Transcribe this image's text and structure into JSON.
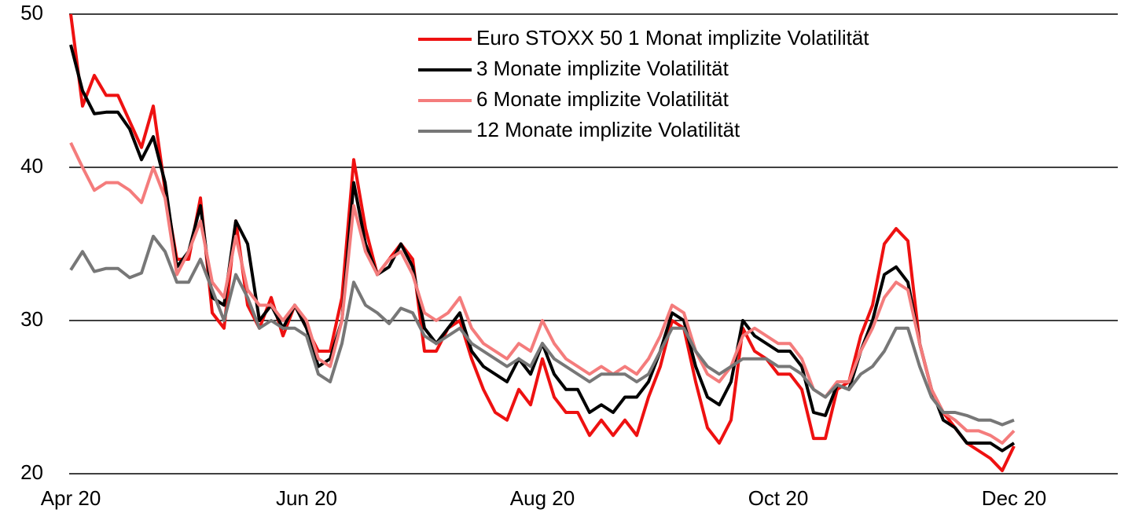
{
  "chart_data": {
    "type": "line",
    "categories": [
      "Apr 20",
      null,
      null,
      null,
      null,
      null,
      null,
      null,
      null,
      null,
      null,
      null,
      null,
      null,
      null,
      null,
      null,
      null,
      null,
      null,
      "Jun 20",
      null,
      null,
      null,
      null,
      null,
      null,
      null,
      null,
      null,
      null,
      null,
      null,
      null,
      null,
      null,
      null,
      null,
      null,
      null,
      "Aug 20",
      null,
      null,
      null,
      null,
      null,
      null,
      null,
      null,
      null,
      null,
      null,
      null,
      null,
      null,
      null,
      null,
      null,
      null,
      null,
      "Oct 20",
      null,
      null,
      null,
      null,
      null,
      null,
      null,
      null,
      null,
      null,
      null,
      null,
      null,
      null,
      null,
      null,
      null,
      null,
      null,
      "Dec 20"
    ],
    "series": [
      {
        "name": "Euro STOXX 50 1 Monat implizite Volatilität",
        "color": "#ee1111",
        "values": [
          50,
          44,
          46,
          44.7,
          44.7,
          43,
          41.3,
          44,
          38.5,
          34,
          34,
          38,
          30.5,
          29.5,
          36.5,
          31,
          29.5,
          31.5,
          29,
          31,
          29.5,
          28,
          28,
          31.5,
          40.5,
          36,
          33,
          34,
          35,
          34,
          28,
          28,
          29.5,
          30,
          27.5,
          25.5,
          24,
          23.5,
          25.5,
          24.5,
          27.5,
          25,
          24,
          24,
          22.5,
          23.5,
          22.5,
          23.5,
          22.5,
          25,
          27,
          30,
          29.5,
          26,
          23,
          22,
          23.5,
          29.5,
          28,
          27.5,
          26.5,
          26.5,
          25.5,
          22.3,
          22.3,
          25.5,
          26,
          29,
          31,
          35,
          36,
          35.2,
          28.5,
          25.5,
          24,
          23,
          22,
          21.5,
          21,
          20.2,
          21.8
        ]
      },
      {
        "name": "3 Monate implizite Volatilität",
        "color": "#000000",
        "values": [
          48,
          45,
          43.5,
          43.6,
          43.6,
          42.5,
          40.5,
          42,
          39,
          33.5,
          34.5,
          37.5,
          31.5,
          31,
          36.5,
          35,
          30,
          31,
          29.5,
          31,
          29.5,
          27,
          27.5,
          30,
          39,
          35,
          33,
          33.5,
          35,
          33.5,
          29.5,
          28.5,
          29.5,
          30.5,
          28,
          27,
          26.5,
          26,
          27.5,
          26.5,
          28.5,
          26.5,
          25.5,
          25.5,
          24,
          24.5,
          24,
          25,
          25,
          26,
          28,
          30.5,
          30,
          27,
          25,
          24.5,
          26,
          30,
          29,
          28.5,
          28,
          28,
          27,
          24,
          23.8,
          25.8,
          25.5,
          28,
          30,
          33,
          33.5,
          32.5,
          28.5,
          25.5,
          23.5,
          23,
          22,
          22,
          22,
          21.5,
          22
        ]
      },
      {
        "name": "6 Monate implizite Volatilität",
        "color": "#f47c7c",
        "values": [
          41.6,
          40,
          38.5,
          39,
          39,
          38.5,
          37.7,
          40,
          38,
          33,
          34.5,
          36.5,
          32.5,
          31.5,
          35.5,
          32,
          31,
          31,
          30,
          31,
          30,
          27.5,
          27,
          30,
          37.5,
          34.5,
          33,
          34,
          34.5,
          33,
          30.5,
          30,
          30.5,
          31.5,
          29.5,
          28.5,
          28,
          27.5,
          28.5,
          28,
          30,
          28.5,
          27.5,
          27,
          26.5,
          27,
          26.5,
          27,
          26.5,
          27.5,
          29,
          31,
          30.5,
          28,
          26.5,
          26,
          27,
          29,
          29.5,
          29,
          28.5,
          28.5,
          27.5,
          25.5,
          25,
          26,
          26,
          28,
          29.5,
          31.5,
          32.5,
          32,
          28.5,
          25.5,
          24,
          23.5,
          22.8,
          22.8,
          22.5,
          22,
          22.8
        ]
      },
      {
        "name": "12 Monate implizite Volatilität",
        "color": "#777777",
        "values": [
          33.3,
          34.5,
          33.2,
          33.4,
          33.4,
          32.8,
          33.1,
          35.5,
          34.5,
          32.5,
          32.5,
          34,
          32,
          30,
          33,
          31.5,
          29.5,
          30,
          29.5,
          29.5,
          29,
          26.5,
          26,
          28.5,
          32.5,
          31,
          30.5,
          29.8,
          30.8,
          30.5,
          29,
          28.5,
          29,
          29.5,
          28.5,
          28,
          27.5,
          27,
          27.5,
          27,
          28.5,
          27.5,
          27,
          26.5,
          26,
          26.5,
          26.5,
          26.5,
          26,
          26.5,
          28,
          29.5,
          29.5,
          28,
          27,
          26.5,
          27,
          27.5,
          27.5,
          27.5,
          27,
          27,
          26.5,
          25.5,
          25,
          25.8,
          25.5,
          26.5,
          27,
          28,
          29.5,
          29.5,
          27,
          25,
          24,
          24,
          23.8,
          23.5,
          23.5,
          23.2,
          23.5
        ]
      }
    ],
    "ylim": [
      20,
      50
    ],
    "yticks": [
      20,
      30,
      40,
      50
    ],
    "grid": true,
    "legend": "top-right"
  }
}
